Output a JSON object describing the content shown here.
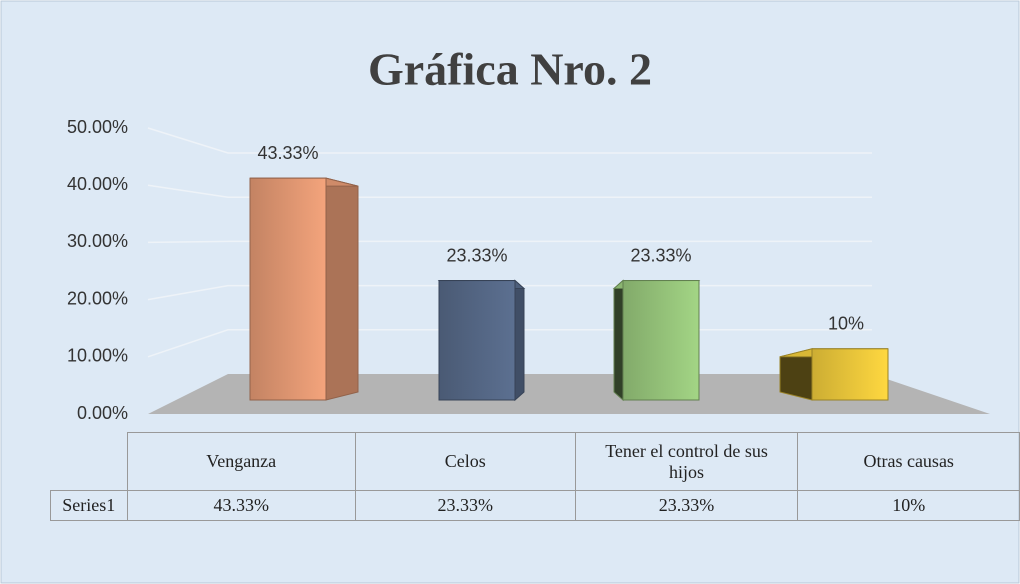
{
  "chart_data": {
    "type": "bar3d",
    "title": "Gráfica Nro. 2",
    "categories": [
      "Venganza",
      "Celos",
      "Tener el control de sus hijos",
      "Otras causas"
    ],
    "series": [
      {
        "name": "Series1",
        "colors": [
          "#f4a47c",
          "#5c7091",
          "#a3d585",
          "#ffd840"
        ],
        "values": [
          43.33,
          23.33,
          23.33,
          10
        ],
        "value_labels": [
          "43.33%",
          "23.33%",
          "23.33%",
          "10%"
        ]
      }
    ],
    "ylim": [
      0,
      50
    ],
    "yticks": [
      {
        "value": 0,
        "label": "0.00%"
      },
      {
        "value": 10,
        "label": "10.00%"
      },
      {
        "value": 20,
        "label": "20.00%"
      },
      {
        "value": 30,
        "label": "30.00%"
      },
      {
        "value": 40,
        "label": "40.00%"
      },
      {
        "value": 50,
        "label": "50.00%"
      }
    ],
    "grid": true,
    "data_table": true
  }
}
